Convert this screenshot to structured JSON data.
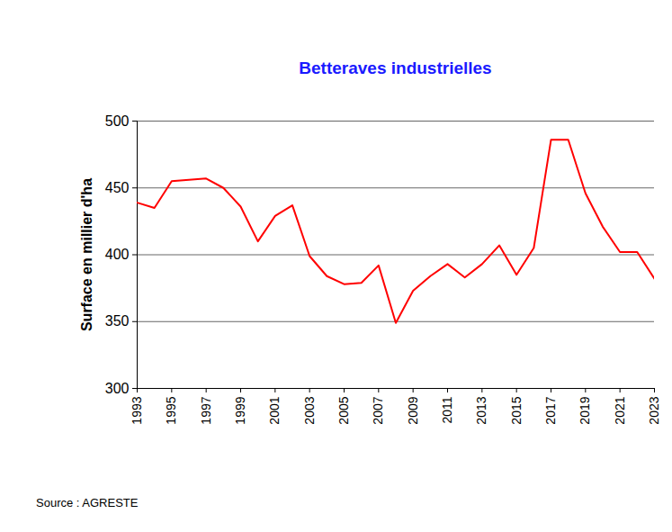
{
  "chart_data": {
    "type": "line",
    "title": "Betteraves industrielles",
    "y_label": "Surface en millier d'ha",
    "caption": "Source : AGRESTE",
    "x": [
      1993,
      1994,
      1995,
      1996,
      1997,
      1998,
      1999,
      2000,
      2001,
      2002,
      2003,
      2004,
      2005,
      2006,
      2007,
      2008,
      2009,
      2010,
      2011,
      2012,
      2013,
      2014,
      2015,
      2016,
      2017,
      2018,
      2019,
      2020,
      2021,
      2022,
      2023
    ],
    "values": [
      439,
      435,
      455,
      456,
      457,
      450,
      436,
      410,
      429,
      437,
      399,
      384,
      378,
      379,
      392,
      349,
      373,
      384,
      393,
      383,
      393,
      407,
      385,
      405,
      486,
      486,
      446,
      421,
      402,
      402,
      382
    ],
    "color": "#ff0000",
    "xlim": [
      1993,
      2023
    ],
    "xticks": [
      1993,
      1995,
      1997,
      1999,
      2001,
      2003,
      2005,
      2007,
      2009,
      2011,
      2013,
      2015,
      2017,
      2019,
      2021,
      2023
    ],
    "ylim": [
      300,
      500
    ],
    "yticks": [
      300,
      350,
      400,
      450,
      500
    ],
    "grid": true
  }
}
